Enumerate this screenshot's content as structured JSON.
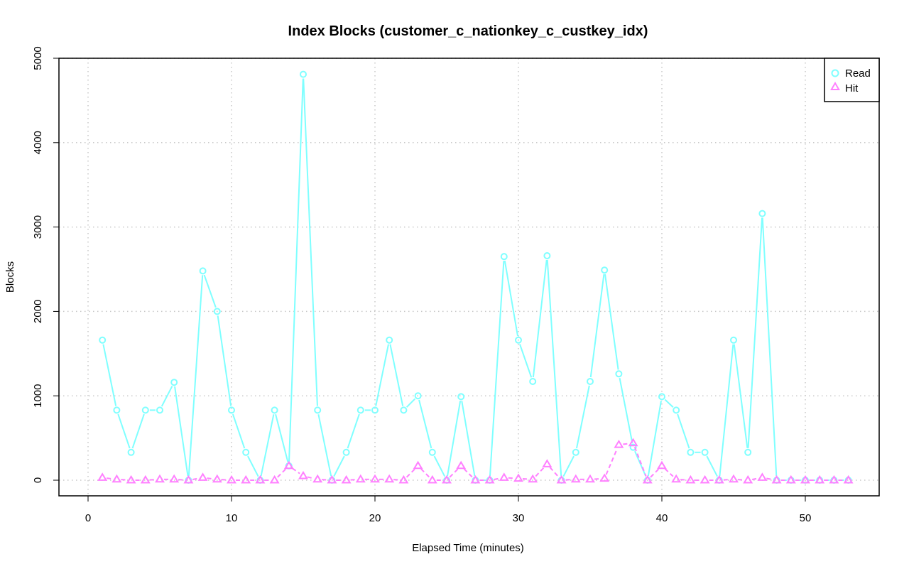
{
  "chart_data": {
    "type": "line",
    "title": "Index Blocks (customer_c_nationkey_c_custkey_idx)",
    "xlabel": "Elapsed Time (minutes)",
    "ylabel": "Blocks",
    "xlim": [
      -2,
      55
    ],
    "ylim": [
      -180,
      5000
    ],
    "x_ticks": [
      0,
      10,
      20,
      30,
      40,
      50
    ],
    "y_ticks": [
      0,
      1000,
      2000,
      3000,
      4000,
      5000
    ],
    "grid": true,
    "legend_position": "top-right",
    "x": [
      1,
      2,
      3,
      4,
      5,
      6,
      7,
      8,
      9,
      10,
      11,
      12,
      13,
      14,
      15,
      16,
      17,
      18,
      19,
      20,
      21,
      22,
      23,
      24,
      25,
      26,
      27,
      28,
      29,
      30,
      31,
      32,
      33,
      34,
      35,
      36,
      37,
      38,
      39,
      40,
      41,
      42,
      43,
      44,
      45,
      46,
      47,
      48,
      49,
      50,
      51,
      52,
      53
    ],
    "series": [
      {
        "name": "Read",
        "color": "#7FFFFF",
        "marker": "circle",
        "values": [
          1660,
          830,
          330,
          830,
          830,
          1160,
          0,
          2480,
          2000,
          830,
          330,
          0,
          830,
          170,
          4810,
          830,
          0,
          330,
          830,
          830,
          1660,
          830,
          1000,
          330,
          0,
          990,
          0,
          0,
          2650,
          1660,
          1170,
          2660,
          0,
          330,
          1170,
          2490,
          1260,
          390,
          0,
          990,
          830,
          330,
          330,
          0,
          1660,
          330,
          3160,
          0,
          0,
          0,
          0,
          0,
          0
        ]
      },
      {
        "name": "Hit",
        "color": "#FF80FF",
        "marker": "triangle",
        "values": [
          30,
          10,
          0,
          0,
          10,
          10,
          0,
          30,
          10,
          0,
          0,
          0,
          0,
          170,
          50,
          10,
          0,
          0,
          10,
          10,
          10,
          0,
          170,
          0,
          0,
          170,
          0,
          0,
          30,
          20,
          10,
          190,
          0,
          10,
          10,
          20,
          420,
          440,
          0,
          170,
          10,
          0,
          0,
          0,
          10,
          0,
          30,
          0,
          0,
          0,
          0,
          0,
          0
        ]
      }
    ]
  }
}
